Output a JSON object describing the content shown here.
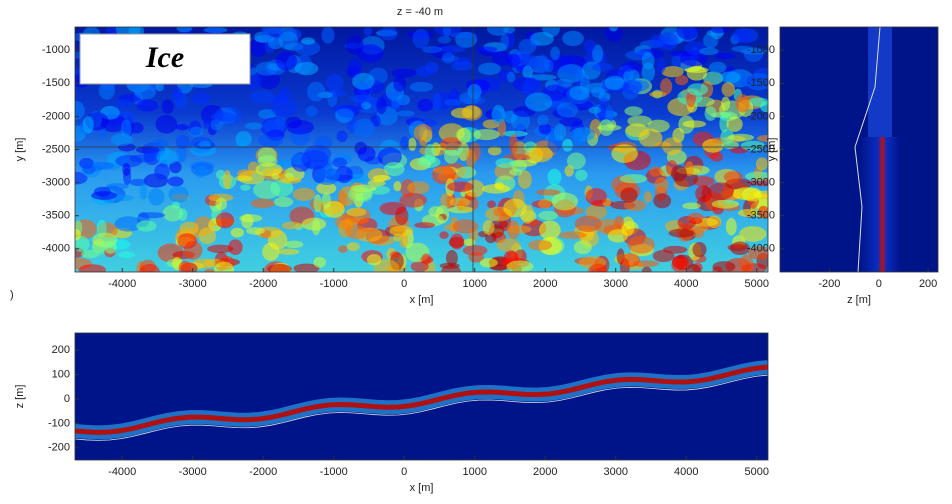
{
  "chart_data": [
    {
      "type": "image",
      "title": "z = -40 m",
      "annotation": "Ice",
      "xlabel": "x [m]",
      "ylabel": "y [m]",
      "xlim": [
        -4670,
        5160
      ],
      "ylim": [
        -4350,
        -650
      ],
      "xticks": [
        -4000,
        -3000,
        -2000,
        -1000,
        0,
        1000,
        2000,
        3000,
        4000,
        5000
      ],
      "yticks": [
        -4000,
        -3500,
        -3000,
        -2500,
        -2000,
        -1500,
        -1000
      ]
    },
    {
      "type": "image",
      "xlabel": "z [m]",
      "ylabel": "y [m]",
      "xlim": [
        -400,
        240
      ],
      "ylim": [
        -4350,
        -650
      ],
      "xticks": [
        -200,
        0,
        200
      ],
      "yticks": [
        -4000,
        -3500,
        -3000,
        -2500,
        -2000,
        -1500,
        -1000
      ]
    },
    {
      "type": "image",
      "xlabel": "x [m]",
      "ylabel": "z [m]",
      "xlim": [
        -4670,
        5160
      ],
      "ylim": [
        -250,
        270
      ],
      "xticks": [
        -4000,
        -3000,
        -2000,
        -1000,
        0,
        1000,
        2000,
        3000,
        4000,
        5000
      ],
      "yticks": [
        -200,
        -100,
        0,
        100,
        200
      ]
    }
  ],
  "fragment": ")"
}
